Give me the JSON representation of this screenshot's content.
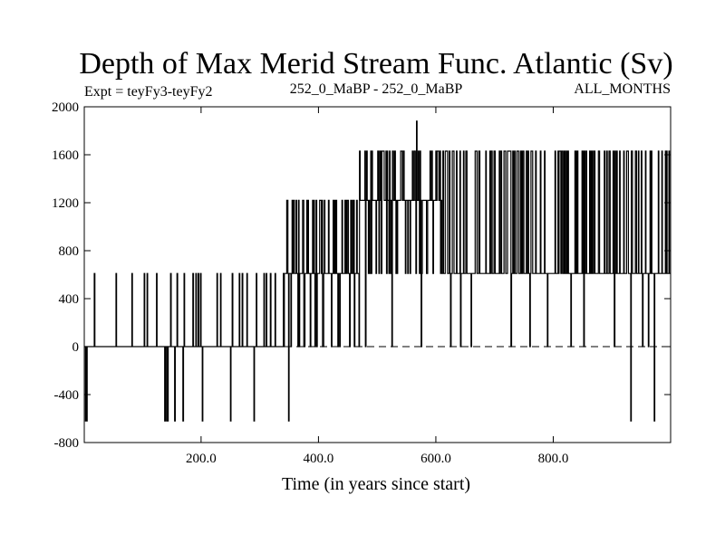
{
  "chart_data": {
    "type": "line",
    "title": "Depth of Max Merid Stream Func. Atlantic (Sv)",
    "subtitle_left": "Expt = teyFy3-teyFy2",
    "subtitle_center": "252_0_MaBP - 252_0_MaBP",
    "subtitle_right": "ALL_MONTHS",
    "xlabel": "Time (in years since start)",
    "ylabel": "",
    "xlim": [
      1,
      1000
    ],
    "ylim": [
      -800,
      2000
    ],
    "x_ticks": [
      200,
      400,
      600,
      800
    ],
    "x_tick_labels": [
      "200.0",
      "400.0",
      "600.0",
      "800.0"
    ],
    "y_ticks": [
      -800,
      -400,
      0,
      400,
      800,
      1200,
      1600,
      2000
    ],
    "y_tick_labels": [
      "-800",
      "-400",
      "0",
      "400",
      "800",
      "1200",
      "1600",
      "2000"
    ],
    "zero_line": "dashed",
    "grid": false,
    "legend": "none",
    "series": [
      {
        "color": "#000000",
        "segments": [
          {
            "x0": 1,
            "x1": 340,
            "base": 0,
            "spikes": [
              [
                3,
                -620
              ],
              [
                5,
                -620
              ],
              [
                18,
                610
              ],
              [
                55,
                610
              ],
              [
                82,
                610
              ],
              [
                103,
                610
              ],
              [
                108,
                610
              ],
              [
                124,
                610
              ],
              [
                138,
                -620
              ],
              [
                141,
                -620
              ],
              [
                143,
                -620
              ],
              [
                148,
                610
              ],
              [
                155,
                -620
              ],
              [
                159,
                610
              ],
              [
                169,
                -620
              ],
              [
                171,
                610
              ],
              [
                186,
                610
              ],
              [
                191,
                610
              ],
              [
                195,
                610
              ],
              [
                199,
                610
              ],
              [
                202,
                -620
              ],
              [
                227,
                610
              ],
              [
                233,
                610
              ],
              [
                250,
                -620
              ],
              [
                253,
                610
              ],
              [
                265,
                610
              ],
              [
                270,
                610
              ],
              [
                278,
                610
              ],
              [
                290,
                -620
              ],
              [
                294,
                610
              ],
              [
                307,
                610
              ],
              [
                311,
                610
              ],
              [
                318,
                610
              ],
              [
                326,
                610
              ]
            ]
          },
          {
            "x0": 340,
            "x1": 470,
            "base": 610,
            "low": 0,
            "high": 1220,
            "spikes": [
              [
                346,
                1220
              ],
              [
                349,
                -620
              ],
              [
                380,
                1220
              ],
              [
                428,
                1220
              ],
              [
                445,
                1220
              ],
              [
                458,
                1220
              ],
              [
                465,
                1220
              ]
            ]
          },
          {
            "x0": 470,
            "x1": 610,
            "base": 1220,
            "low": 610,
            "high": 1630,
            "spikes": [
              [
                480,
                0
              ],
              [
                506,
                1630
              ],
              [
                515,
                1630
              ],
              [
                525,
                0
              ],
              [
                540,
                1630
              ],
              [
                560,
                1630
              ],
              [
                567,
                1880
              ],
              [
                575,
                0
              ],
              [
                585,
                610
              ],
              [
                600,
                1630
              ]
            ]
          },
          {
            "x0": 610,
            "x1": 1000,
            "base": 610,
            "low": 610,
            "high": 1630,
            "spikes": [
              [
                625,
                0
              ],
              [
                642,
                0
              ],
              [
                660,
                0
              ],
              [
                700,
                1630
              ],
              [
                728,
                0
              ],
              [
                760,
                0
              ],
              [
                790,
                0
              ],
              [
                818,
                1630
              ],
              [
                830,
                0
              ],
              [
                852,
                0
              ],
              [
                878,
                1630
              ],
              [
                904,
                0
              ],
              [
                932,
                -620
              ],
              [
                952,
                0
              ],
              [
                962,
                0
              ],
              [
                972,
                -620
              ],
              [
                985,
                1630
              ],
              [
                993,
                1630
              ]
            ]
          }
        ]
      }
    ]
  }
}
